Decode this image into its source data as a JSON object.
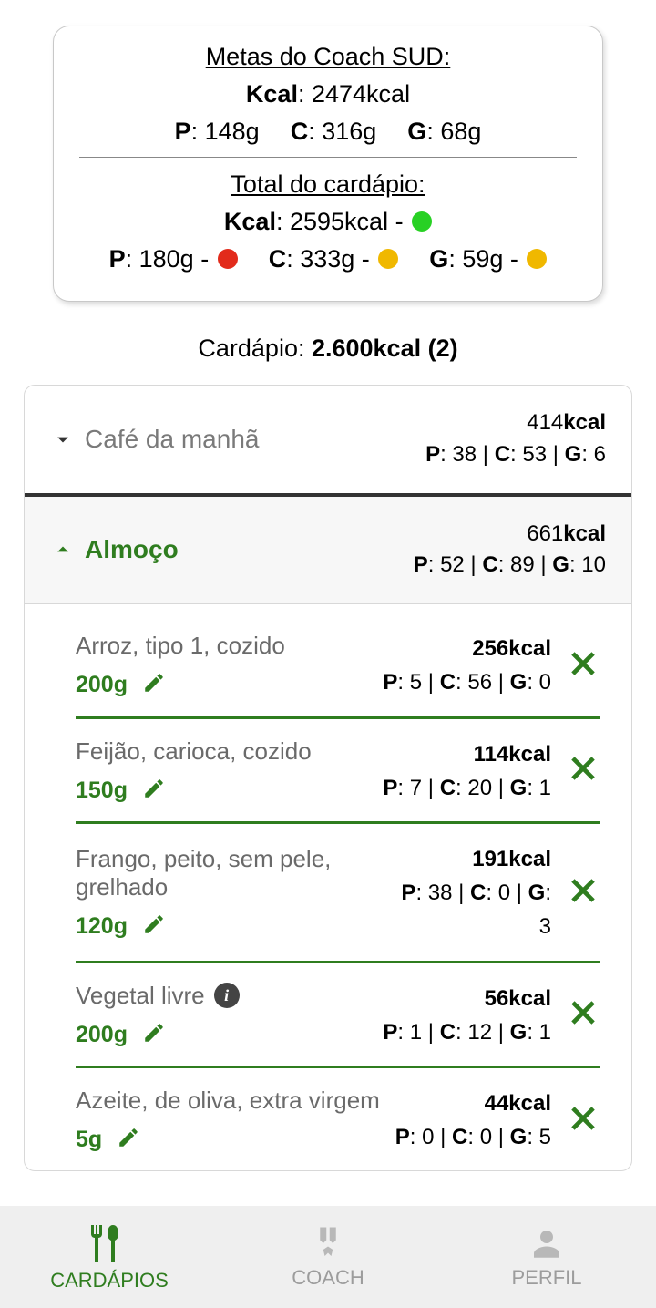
{
  "colors": {
    "accent": "#2f7d1f",
    "muted": "#7a7a7a",
    "status_green": "#28d124",
    "status_red": "#e22b1b",
    "status_orange": "#f0b800"
  },
  "summary": {
    "goals_title": "Metas do Coach SUD:",
    "kcal_label": "Kcal",
    "goals_kcal": "2474kcal",
    "goals_p_label": "P",
    "goals_p": "148g",
    "goals_c_label": "C",
    "goals_c": "316g",
    "goals_g_label": "G",
    "goals_g": "68g",
    "total_title": "Total do cardápio:",
    "total_kcal": "2595kcal",
    "total_kcal_status": "#28d124",
    "total_p_label": "P",
    "total_p": "180g",
    "total_p_status": "#e22b1b",
    "total_c_label": "C",
    "total_c": "333g",
    "total_c_status": "#f0b800",
    "total_g_label": "G",
    "total_g": "59g",
    "total_g_status": "#f0b800"
  },
  "cardapio": {
    "prefix": "Cardápio: ",
    "value": "2.600kcal (2)"
  },
  "meals": [
    {
      "name": "Café da manhã",
      "expanded": false,
      "kcal": "414",
      "p": "38",
      "c": "53",
      "g": "6"
    },
    {
      "name": "Almoço",
      "expanded": true,
      "kcal": "661",
      "p": "52",
      "c": "89",
      "g": "10",
      "foods": [
        {
          "name": "Arroz, tipo 1, cozido",
          "qty": "200g",
          "kcal": "256kcal",
          "p": "5",
          "c": "56",
          "g": "0",
          "info": false
        },
        {
          "name": "Feijão, carioca, cozido",
          "qty": "150g",
          "kcal": "114kcal",
          "p": "7",
          "c": "20",
          "g": "1",
          "info": false
        },
        {
          "name": "Frango, peito, sem pele, grelhado",
          "qty": "120g",
          "kcal": "191kcal",
          "p": "38",
          "c": "0",
          "g": "3",
          "info": false
        },
        {
          "name": "Vegetal livre",
          "qty": "200g",
          "kcal": "56kcal",
          "p": "1",
          "c": "12",
          "g": "1",
          "info": true
        },
        {
          "name": "Azeite, de oliva, extra virgem",
          "qty": "5g",
          "kcal": "44kcal",
          "p": "0",
          "c": "0",
          "g": "5",
          "info": false
        }
      ]
    }
  ],
  "nav": {
    "cardapios": "CARDÁPIOS",
    "coach": "COACH",
    "perfil": "PERFIL"
  }
}
